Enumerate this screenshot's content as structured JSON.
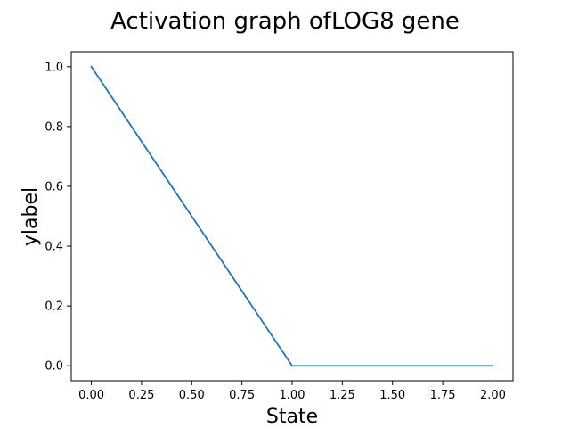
{
  "chart_data": {
    "type": "line",
    "title": "Activation graph ofLOG8 gene",
    "xlabel": "State",
    "ylabel": "ylabel",
    "xlim": [
      -0.1,
      2.1
    ],
    "ylim": [
      -0.05,
      1.05
    ],
    "xticks": [
      0.0,
      0.25,
      0.5,
      0.75,
      1.0,
      1.25,
      1.5,
      1.75,
      2.0
    ],
    "xtick_labels": [
      "0.00",
      "0.25",
      "0.50",
      "0.75",
      "1.00",
      "1.25",
      "1.50",
      "1.75",
      "2.00"
    ],
    "yticks": [
      0.0,
      0.2,
      0.4,
      0.6,
      0.8,
      1.0
    ],
    "ytick_labels": [
      "0.0",
      "0.2",
      "0.4",
      "0.6",
      "0.8",
      "1.0"
    ],
    "grid": false,
    "series": [
      {
        "x": [
          0,
          1,
          2
        ],
        "y": [
          1.0,
          0.0,
          0.0
        ],
        "color": "#1f77b4"
      }
    ]
  }
}
